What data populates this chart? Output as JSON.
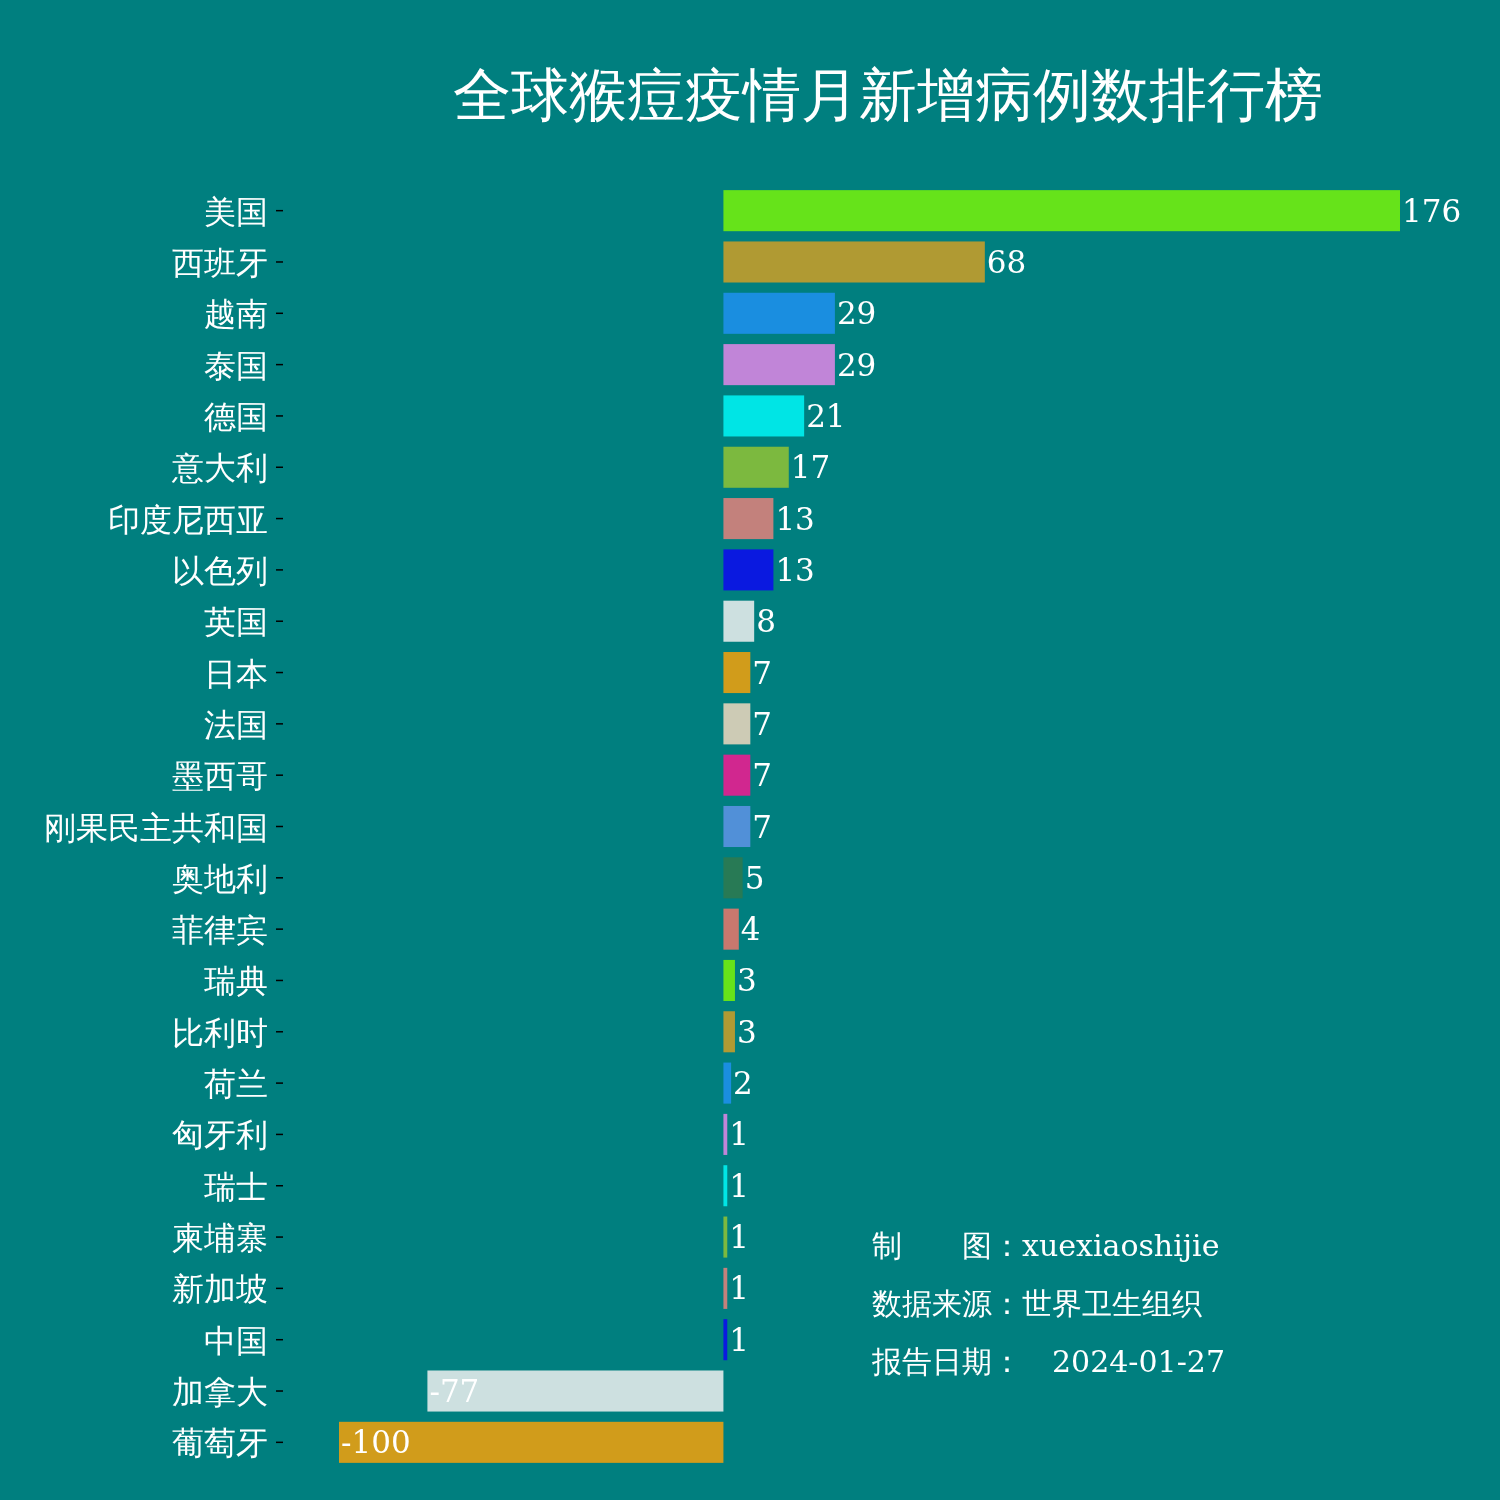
{
  "chart_data": {
    "type": "bar",
    "orientation": "horizontal",
    "title": "全球猴痘疫情月新增病例数排行榜",
    "categories": [
      "美国",
      "西班牙",
      "越南",
      "泰国",
      "德国",
      "意大利",
      "印度尼西亚",
      "以色列",
      "英国",
      "日本",
      "法国",
      "墨西哥",
      "刚果民主共和国",
      "奥地利",
      "菲律宾",
      "瑞典",
      "比利时",
      "荷兰",
      "匈牙利",
      "瑞士",
      "柬埔寨",
      "新加坡",
      "中国",
      "加拿大",
      "葡萄牙"
    ],
    "values": [
      176,
      68,
      29,
      29,
      21,
      17,
      13,
      13,
      8,
      7,
      7,
      7,
      7,
      5,
      4,
      3,
      3,
      2,
      1,
      1,
      1,
      1,
      1,
      -77,
      -100
    ],
    "colors": [
      "#66e31a",
      "#b09a33",
      "#1a8ee0",
      "#c185d8",
      "#00e5e5",
      "#7cb93f",
      "#c3817c",
      "#0a19e0",
      "#cde0e0",
      "#d19c1b",
      "#cdcbb5",
      "#d1278f",
      "#5190d8",
      "#287a55",
      "#c8786e",
      "#66e31a",
      "#b09a33",
      "#1a8ee0",
      "#c185d8",
      "#00e5e5",
      "#7cb93f",
      "#c3817c",
      "#0a19e0",
      "#cde0e0",
      "#d19c1b"
    ],
    "data_labels": true,
    "annotations": [
      "制　　图：xuexiaoshijie",
      "数据来源：世界卫生组织",
      "报告日期：　2024-01-27"
    ]
  }
}
